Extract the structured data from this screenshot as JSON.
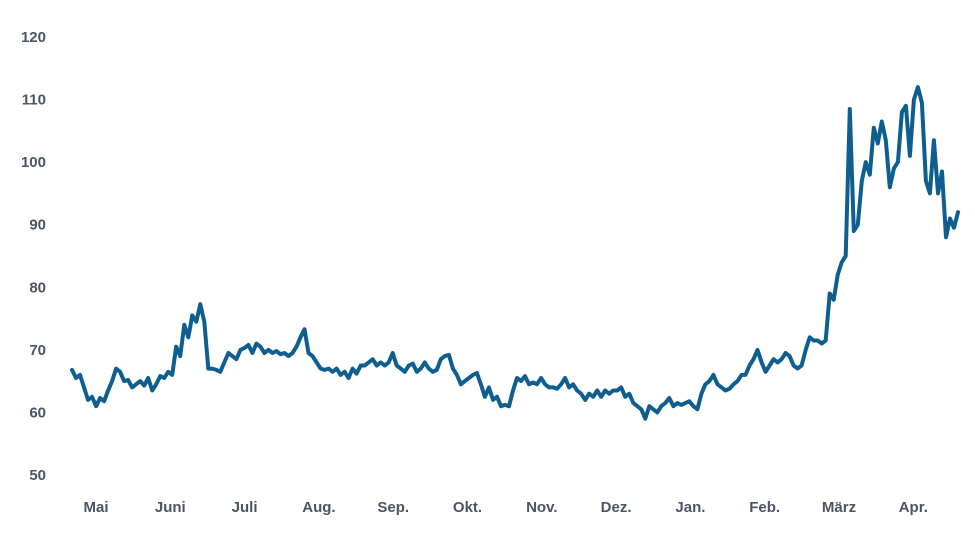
{
  "colors": {
    "series": "#0e5f90",
    "tick_text": "#4a5568",
    "background": "#ffffff"
  },
  "chart_data": {
    "type": "line",
    "title": "",
    "xlabel": "",
    "ylabel": "",
    "ylim": [
      50,
      120
    ],
    "y_ticks": [
      50,
      60,
      70,
      80,
      90,
      100,
      110,
      120
    ],
    "x_tick_labels": [
      "Mai",
      "Juni",
      "Juli",
      "Aug.",
      "Sep.",
      "Okt.",
      "Nov.",
      "Dez.",
      "Jan.",
      "Feb.",
      "März",
      "Apr."
    ],
    "grid": false,
    "legend": "none",
    "series": [
      {
        "values": [
          66.8,
          65.5,
          66.0,
          64.0,
          62.0,
          62.5,
          61.0,
          62.3,
          61.8,
          63.5,
          65.0,
          67.0,
          66.5,
          65.0,
          65.2,
          64.0,
          64.5,
          65.0,
          64.3,
          65.5,
          63.5,
          64.5,
          65.8,
          65.5,
          66.5,
          66.0,
          70.5,
          69.0,
          74.0,
          72.0,
          75.5,
          74.5,
          77.3,
          74.5,
          67.0,
          67.0,
          66.8,
          66.5,
          68.0,
          69.5,
          69.0,
          68.5,
          70.0,
          70.3,
          70.8,
          69.5,
          71.0,
          70.5,
          69.5,
          70.0,
          69.5,
          69.8,
          69.3,
          69.5,
          69.0,
          69.5,
          70.5,
          72.0,
          73.3,
          69.5,
          69.0,
          68.0,
          67.0,
          66.8,
          67.0,
          66.5,
          67.0,
          66.0,
          66.5,
          65.5,
          67.0,
          66.2,
          67.5,
          67.5,
          68.0,
          68.5,
          67.5,
          68.0,
          67.5,
          68.0,
          69.5,
          67.5,
          67.0,
          66.5,
          67.5,
          67.8,
          66.5,
          67.0,
          68.0,
          67.0,
          66.5,
          66.8,
          68.5,
          69.0,
          69.2,
          67.0,
          66.0,
          64.5,
          65.0,
          65.5,
          66.0,
          66.3,
          64.5,
          62.5,
          64.0,
          62.0,
          62.5,
          61.0,
          61.2,
          61.0,
          63.5,
          65.5,
          65.0,
          65.8,
          64.5,
          64.8,
          64.5,
          65.5,
          64.5,
          64.0,
          64.0,
          63.8,
          64.5,
          65.5,
          64.0,
          64.5,
          63.5,
          63.0,
          62.0,
          63.0,
          62.5,
          63.5,
          62.5,
          63.5,
          63.0,
          63.5,
          63.5,
          64.0,
          62.5,
          63.0,
          61.5,
          61.0,
          60.5,
          59.0,
          61.0,
          60.5,
          60.0,
          61.0,
          61.5,
          62.3,
          61.0,
          61.5,
          61.2,
          61.5,
          61.8,
          61.0,
          60.5,
          63.0,
          64.5,
          65.0,
          66.0,
          64.5,
          64.0,
          63.5,
          63.8,
          64.5,
          65.0,
          66.0,
          66.0,
          67.5,
          68.5,
          70.0,
          68.0,
          66.5,
          67.5,
          68.5,
          68.0,
          68.5,
          69.5,
          69.0,
          67.5,
          67.0,
          67.5,
          70.0,
          72.0,
          71.5,
          71.5,
          71.0,
          71.5,
          79.0,
          78.0,
          82.0,
          84.0,
          85.0,
          108.5,
          89.0,
          90.0,
          97.0,
          100.0,
          98.0,
          105.5,
          103.0,
          106.5,
          103.5,
          96.0,
          99.0,
          100.0,
          108.0,
          109.0,
          101.0,
          110.0,
          112.0,
          109.5,
          97.0,
          95.0,
          103.5,
          95.0,
          98.5,
          88.0,
          91.0,
          89.5,
          92.0
        ]
      }
    ]
  }
}
